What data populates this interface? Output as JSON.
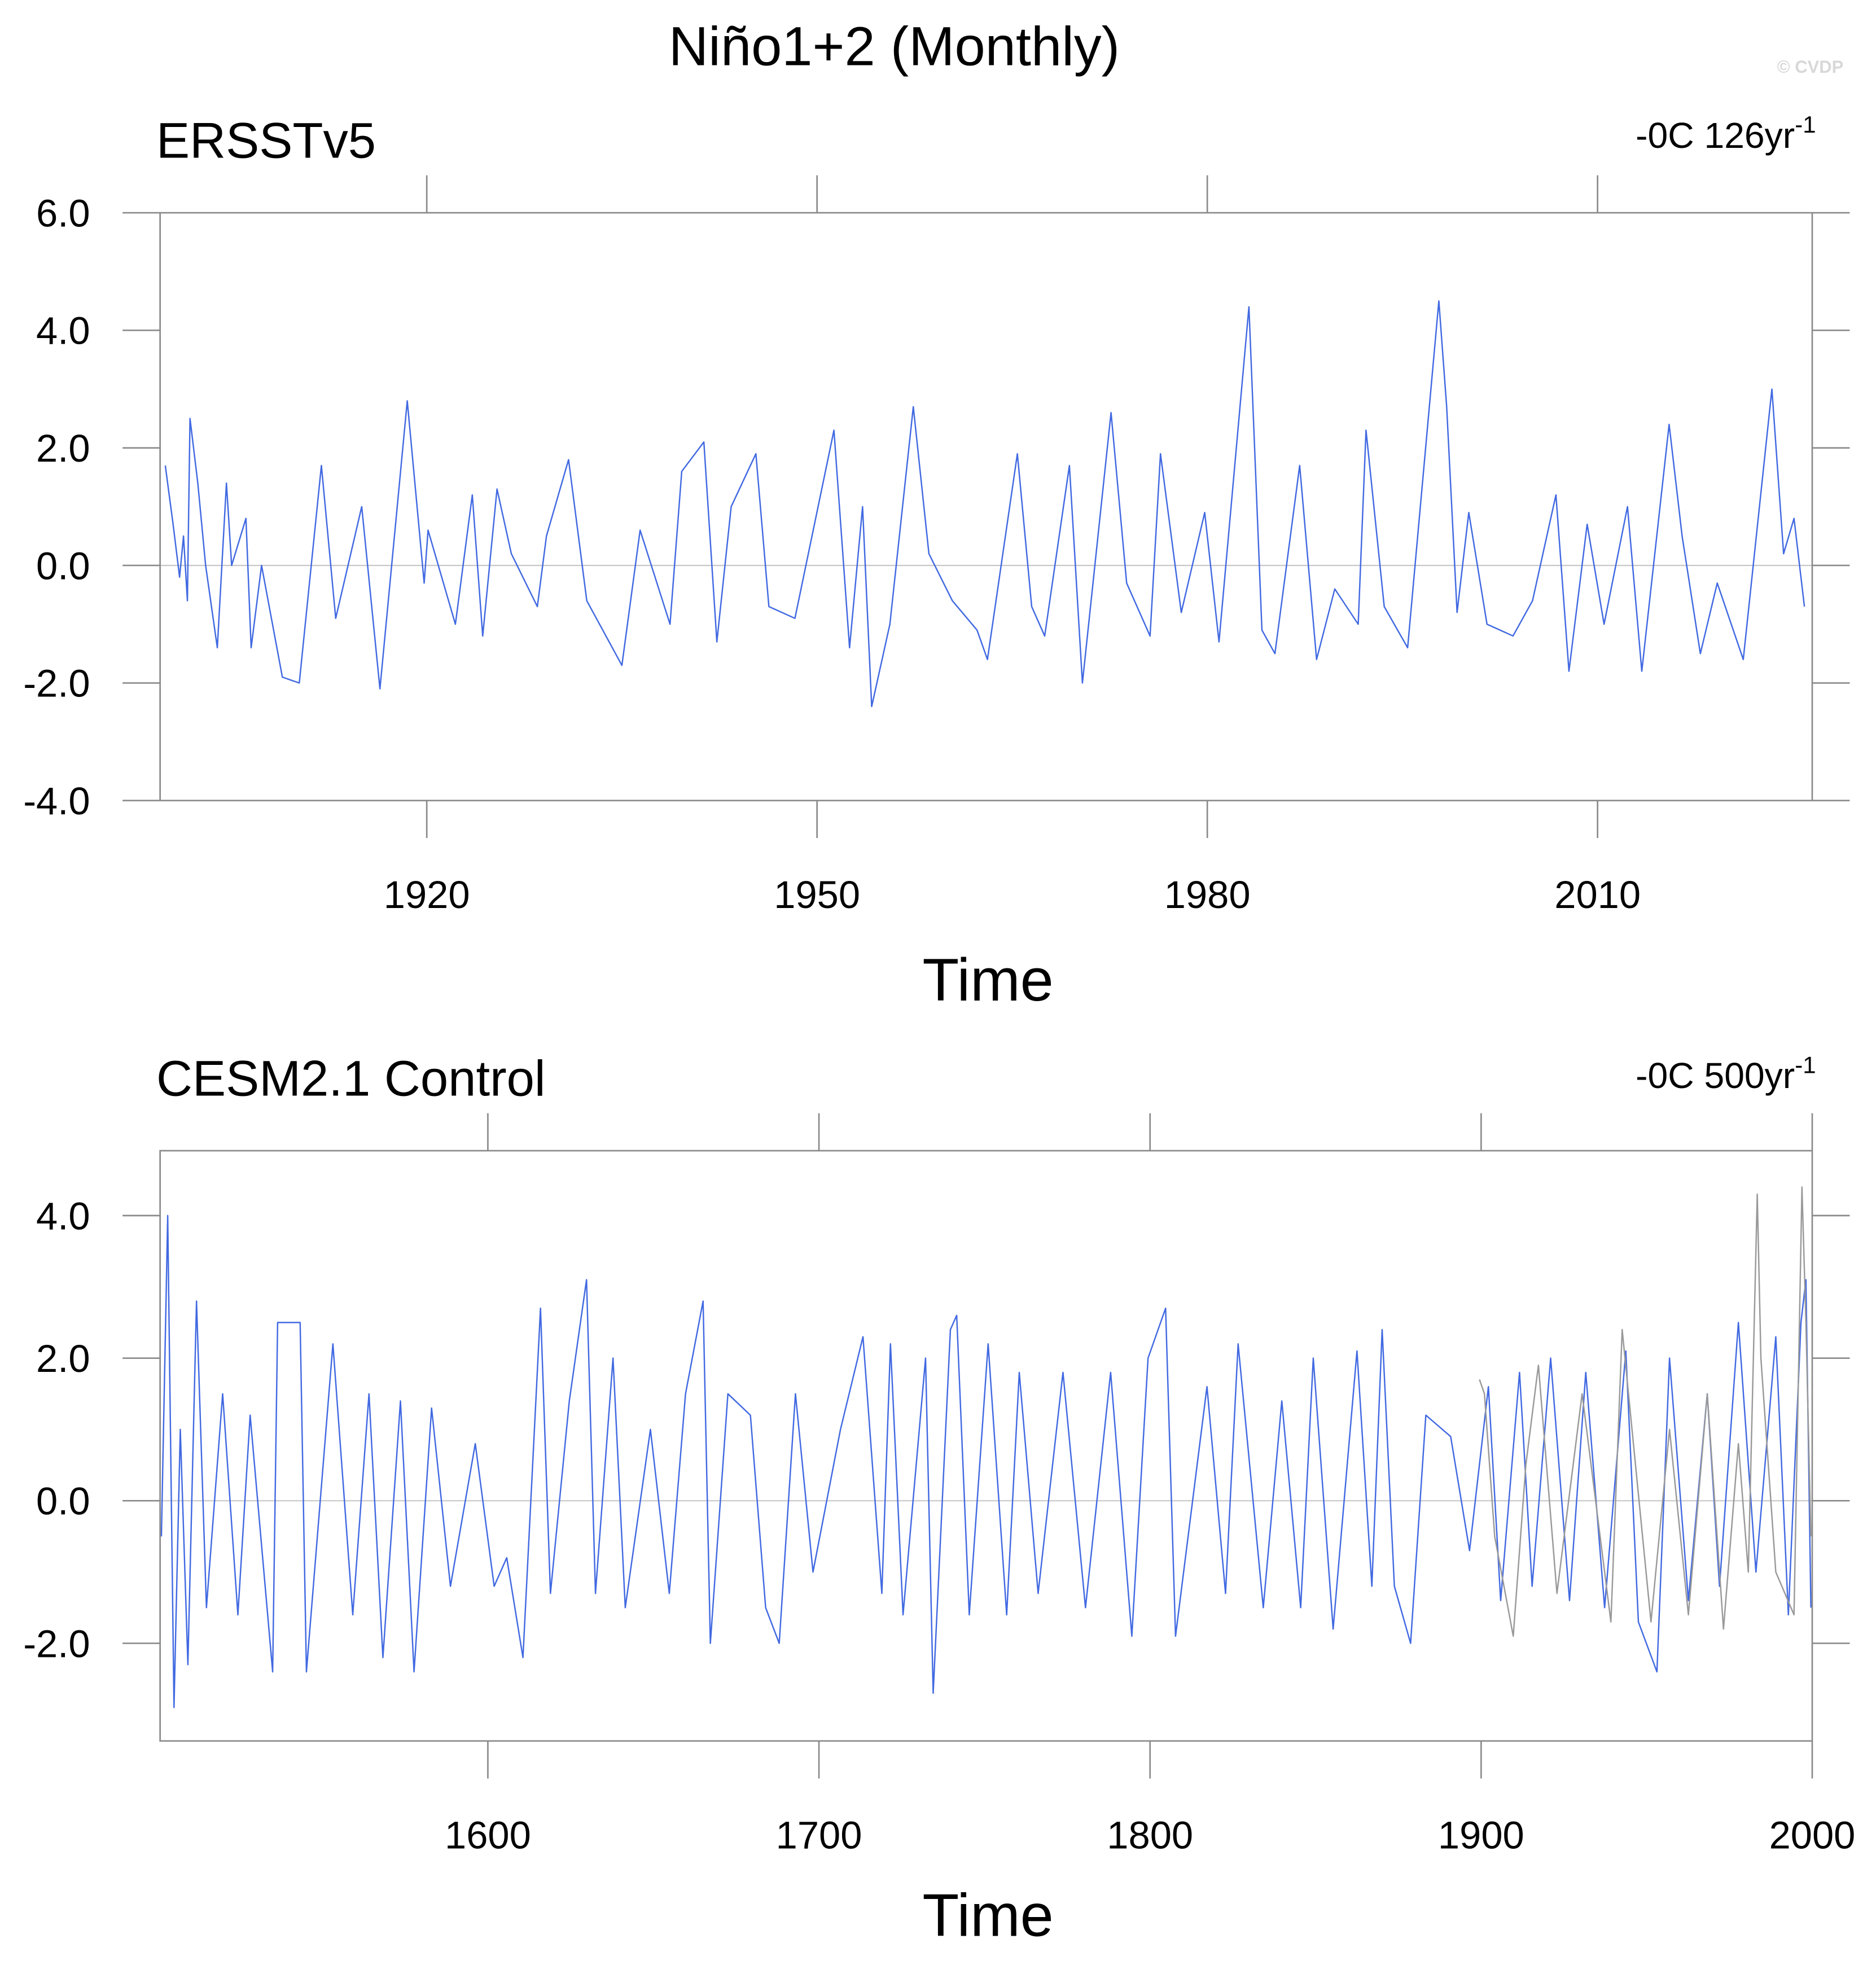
{
  "title": "Niño1+2 (Monthly)",
  "watermark": "© CVDP",
  "chart_data": [
    {
      "type": "line",
      "title": "ERSSTv5",
      "note": {
        "text": "-0C 126yr",
        "sup": "-1"
      },
      "xlabel": "Time",
      "xlim": [
        1899.5,
        2026.5
      ],
      "xticks": [
        1920,
        1950,
        1980,
        2010
      ],
      "ylim": [
        -4,
        6
      ],
      "yticks": [
        {
          "value": -4,
          "label": "-4.0"
        },
        {
          "value": -2,
          "label": "-2.0"
        },
        {
          "value": 0,
          "label": "0.0"
        },
        {
          "value": 2,
          "label": "2.0"
        },
        {
          "value": 4,
          "label": "4.0"
        },
        {
          "value": 6,
          "label": "6.0"
        }
      ],
      "reference_line": 0,
      "series": [
        {
          "color": "#4169e1",
          "x": [
            1899.9,
            1900.5,
            1901.0,
            1901.3,
            1901.6,
            1901.8,
            1902.4,
            1903.0,
            1903.9,
            1904.6,
            1905.0,
            1906.1,
            1906.5,
            1907.3,
            1908.9,
            1910.2,
            1911.9,
            1913.0,
            1915.0,
            1916.4,
            1918.5,
            1919.8,
            1920.1,
            1922.2,
            1923.5,
            1924.3,
            1925.4,
            1926.5,
            1928.5,
            1929.2,
            1930.9,
            1932.3,
            1935.0,
            1936.4,
            1938.7,
            1939.6,
            1941.3,
            1942.3,
            1943.4,
            1945.3,
            1946.3,
            1948.3,
            1951.3,
            1952.5,
            1953.5,
            1954.2,
            1955.6,
            1957.4,
            1958.6,
            1960.4,
            1962.3,
            1963.1,
            1965.4,
            1966.5,
            1967.5,
            1969.4,
            1970.4,
            1972.6,
            1973.8,
            1975.6,
            1976.4,
            1978.0,
            1979.8,
            1980.9,
            1983.2,
            1984.2,
            1985.2,
            1987.1,
            1988.4,
            1989.8,
            1991.6,
            1992.2,
            1993.6,
            1995.4,
            1997.8,
            1998.4,
            1999.2,
            2000.1,
            2001.5,
            2003.5,
            2005.0,
            2006.8,
            2007.8,
            2009.2,
            2010.5,
            2012.3,
            2013.4,
            2015.5,
            2016.5,
            2017.9,
            2019.2,
            2021.2,
            2023.4,
            2024.3,
            2025.1,
            2025.9
          ],
          "values": [
            1.7,
            0.7,
            -0.2,
            0.5,
            -0.6,
            2.5,
            1.4,
            0.0,
            -1.4,
            1.4,
            0.0,
            0.8,
            -1.4,
            0.0,
            -1.9,
            -2.0,
            1.7,
            -0.9,
            1.0,
            -2.1,
            2.8,
            -0.3,
            0.6,
            -1.0,
            1.2,
            -1.2,
            1.3,
            0.2,
            -0.7,
            0.5,
            1.8,
            -0.6,
            -1.7,
            0.6,
            -1.0,
            1.6,
            2.1,
            -1.3,
            1.0,
            1.9,
            -0.7,
            -0.9,
            2.3,
            -1.4,
            1.0,
            -2.4,
            -1.0,
            2.7,
            0.2,
            -0.6,
            -1.1,
            -1.6,
            1.9,
            -0.7,
            -1.2,
            1.7,
            -2.0,
            2.6,
            -0.3,
            -1.2,
            1.9,
            -0.8,
            0.9,
            -1.3,
            4.4,
            -1.1,
            -1.5,
            1.7,
            -1.6,
            -0.4,
            -1.0,
            2.3,
            -0.7,
            -1.4,
            4.5,
            2.7,
            -0.8,
            0.9,
            -1.0,
            -1.2,
            -0.6,
            1.2,
            -1.8,
            0.7,
            -1.0,
            1.0,
            -1.8,
            2.4,
            0.5,
            -1.5,
            -0.3,
            -1.6,
            3.0,
            0.2,
            0.8,
            -0.7
          ]
        }
      ]
    },
    {
      "type": "line",
      "title": "CESM2.1 Control",
      "note": {
        "text": "-0C 500yr",
        "sup": "-1"
      },
      "xlabel": "Time",
      "xlim": [
        1501,
        2000
      ],
      "xticks": [
        1600,
        1700,
        1800,
        1900,
        2000
      ],
      "ylim": [
        -3.37,
        4.91
      ],
      "yticks": [
        {
          "value": -2,
          "label": "-2.0"
        },
        {
          "value": 0,
          "label": "0.0"
        },
        {
          "value": 2,
          "label": "2.0"
        },
        {
          "value": 4,
          "label": "4.0"
        }
      ],
      "reference_line": 0,
      "series": [
        {
          "color": "#4169e1",
          "x": [
            1501.4,
            1503.3,
            1505.2,
            1507.1,
            1509.4,
            1512.0,
            1515.0,
            1519.9,
            1524.5,
            1528.2,
            1535.0,
            1536.5,
            1543.3,
            1545.2,
            1553.2,
            1559.2,
            1564.1,
            1568.3,
            1573.6,
            1577.7,
            1583.0,
            1588.7,
            1596.2,
            1601.9,
            1605.7,
            1610.6,
            1615.9,
            1618.9,
            1624.6,
            1629.8,
            1632.5,
            1637.8,
            1641.5,
            1649.1,
            1654.8,
            1659.7,
            1665.0,
            1667.2,
            1672.5,
            1679.3,
            1683.9,
            1688.0,
            1692.9,
            1698.2,
            1706.5,
            1713.3,
            1719.0,
            1721.6,
            1725.4,
            1732.2,
            1734.5,
            1739.7,
            1741.6,
            1745.4,
            1751.1,
            1756.7,
            1760.5,
            1766.2,
            1773.7,
            1780.5,
            1788.1,
            1794.5,
            1799.4,
            1804.7,
            1807.7,
            1817.2,
            1822.8,
            1826.6,
            1834.2,
            1839.8,
            1845.5,
            1849.3,
            1855.3,
            1862.5,
            1867.0,
            1870.1,
            1873.8,
            1878.7,
            1883.3,
            1890.8,
            1896.5,
            1902.2,
            1905.9,
            1911.6,
            1915.4,
            1921.0,
            1926.7,
            1931.6,
            1937.3,
            1943.7,
            1947.5,
            1953.1,
            1956.9,
            1962.6,
            1968.3,
            1972.0,
            1977.7,
            1983.0,
            1989.0,
            1992.8,
            1996.6,
            1998.1,
            1999.6
          ],
          "values": [
            -0.5,
            4.0,
            -2.9,
            1.0,
            -2.3,
            2.8,
            -1.5,
            1.5,
            -1.6,
            1.2,
            -2.4,
            2.5,
            2.5,
            -2.4,
            2.2,
            -1.6,
            1.5,
            -2.2,
            1.4,
            -2.4,
            1.3,
            -1.2,
            0.8,
            -1.2,
            -0.8,
            -2.2,
            2.7,
            -1.3,
            1.4,
            3.1,
            -1.3,
            2.0,
            -1.5,
            1.0,
            -1.3,
            1.5,
            2.8,
            -2.0,
            1.5,
            1.2,
            -1.5,
            -2.0,
            1.5,
            -1.0,
            1.0,
            2.3,
            -1.3,
            2.2,
            -1.6,
            2.0,
            -2.7,
            2.4,
            2.6,
            -1.6,
            2.2,
            -1.6,
            1.8,
            -1.3,
            1.8,
            -1.5,
            1.8,
            -1.9,
            2.0,
            2.7,
            -1.9,
            1.6,
            -1.3,
            2.2,
            -1.5,
            1.4,
            -1.5,
            2.0,
            -1.8,
            2.1,
            -1.2,
            2.4,
            -1.2,
            -2.0,
            1.2,
            0.9,
            -0.7,
            1.6,
            -1.4,
            1.8,
            -1.2,
            2.0,
            -1.4,
            1.8,
            -1.5,
            2.1,
            -1.7,
            -2.4,
            2.0,
            -1.4,
            1.5,
            -1.2,
            2.5,
            -1.0,
            2.3,
            -1.6,
            2.5,
            3.1,
            -1.5
          ]
        },
        {
          "color": "#999999",
          "x": [
            1899.5,
            1901.0,
            1904.1,
            1909.7,
            1913.5,
            1917.3,
            1922.9,
            1930.5,
            1939.2,
            1942.6,
            1951.3,
            1956.9,
            1962.6,
            1968.3,
            1973.2,
            1977.7,
            1980.7,
            1983.4,
            1984.5,
            1989.0,
            1994.5,
            1996.9,
            1998.1,
            1999.6
          ],
          "values": [
            1.7,
            1.5,
            -0.5,
            -1.9,
            0.5,
            1.9,
            -1.3,
            1.5,
            -1.7,
            2.4,
            -1.7,
            1.0,
            -1.6,
            1.5,
            -1.8,
            0.8,
            -1.0,
            4.3,
            2.0,
            -1.0,
            -1.6,
            4.4,
            2.5,
            -0.5
          ]
        }
      ]
    }
  ]
}
